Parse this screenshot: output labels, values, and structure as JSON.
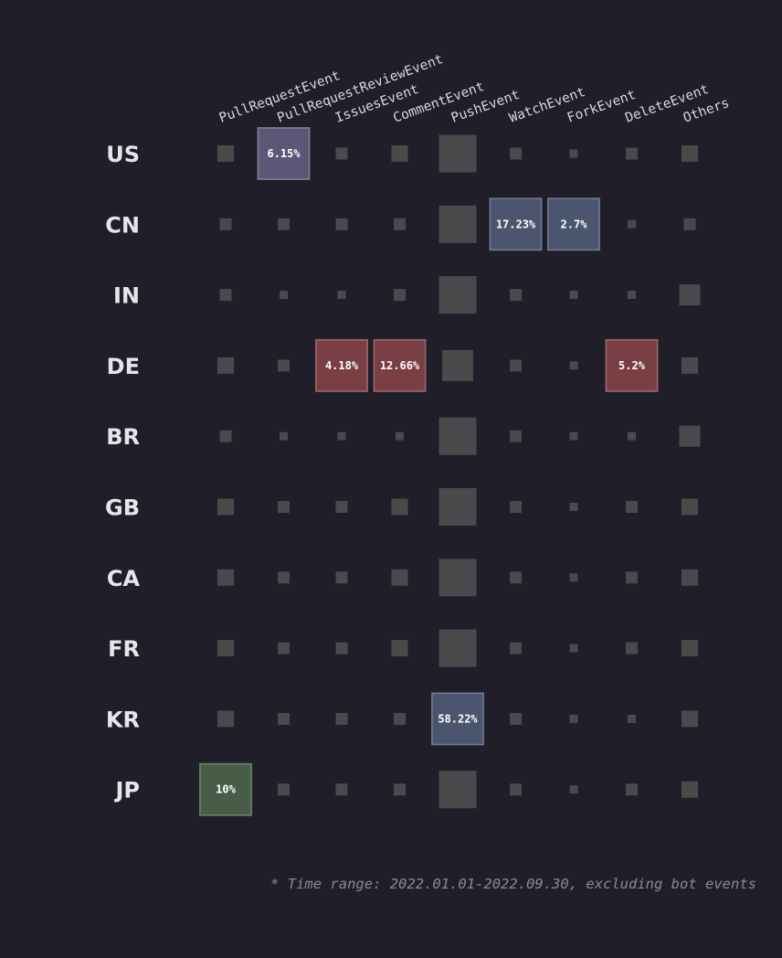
{
  "chart_data": {
    "type": "heatmap",
    "columns": [
      "PullRequestEvent",
      "PullRequestReviewEvent",
      "IssuesEvent",
      "CommentEvent",
      "PushEvent",
      "WatchEvent",
      "ForkEvent",
      "DeleteEvent",
      "Others"
    ],
    "rows": [
      "US",
      "CN",
      "IN",
      "DE",
      "BR",
      "GB",
      "CA",
      "FR",
      "KR",
      "JP"
    ],
    "size_levels": [
      [
        3,
        5,
        2,
        3,
        6,
        2,
        1,
        2,
        3
      ],
      [
        2,
        2,
        2,
        2,
        6,
        4,
        4,
        1,
        2
      ],
      [
        2,
        1,
        1,
        2,
        6,
        2,
        1,
        1,
        4
      ],
      [
        3,
        2,
        4,
        4,
        5,
        2,
        1,
        4,
        3
      ],
      [
        2,
        1,
        1,
        1,
        6,
        2,
        1,
        1,
        4
      ],
      [
        3,
        2,
        2,
        3,
        6,
        2,
        1,
        2,
        3
      ],
      [
        3,
        2,
        2,
        3,
        6,
        2,
        1,
        2,
        3
      ],
      [
        3,
        2,
        2,
        3,
        6,
        2,
        1,
        2,
        3
      ],
      [
        3,
        2,
        2,
        2,
        4,
        2,
        1,
        1,
        3
      ],
      [
        4,
        2,
        2,
        2,
        6,
        2,
        1,
        2,
        3
      ]
    ],
    "highlights": [
      {
        "row": "US",
        "column": "PullRequestReviewEvent",
        "label": "6.15%",
        "color": "#5b5776"
      },
      {
        "row": "CN",
        "column": "WatchEvent",
        "label": "17.23%",
        "color": "#4b556f"
      },
      {
        "row": "CN",
        "column": "ForkEvent",
        "label": "2.7%",
        "color": "#4b556f"
      },
      {
        "row": "DE",
        "column": "IssuesEvent",
        "label": "4.18%",
        "color": "#7a3e45"
      },
      {
        "row": "DE",
        "column": "CommentEvent",
        "label": "12.66%",
        "color": "#7a3e45"
      },
      {
        "row": "DE",
        "column": "DeleteEvent",
        "label": "5.2%",
        "color": "#7a3e45"
      },
      {
        "row": "KR",
        "column": "PushEvent",
        "label": "58.22%",
        "color": "#4b556f"
      },
      {
        "row": "JP",
        "column": "PullRequestEvent",
        "label": "10%",
        "color": "#485d47"
      }
    ],
    "colors": {
      "background": "#1f1e29",
      "neutral_cell": "#4a4a4d",
      "highlight_purple": "#5b5776",
      "highlight_blue": "#4b556f",
      "highlight_red": "#7a3e45",
      "highlight_green": "#485d47"
    }
  },
  "footnote": "* Time range: 2022.01.01-2022.09.30, excluding bot events"
}
